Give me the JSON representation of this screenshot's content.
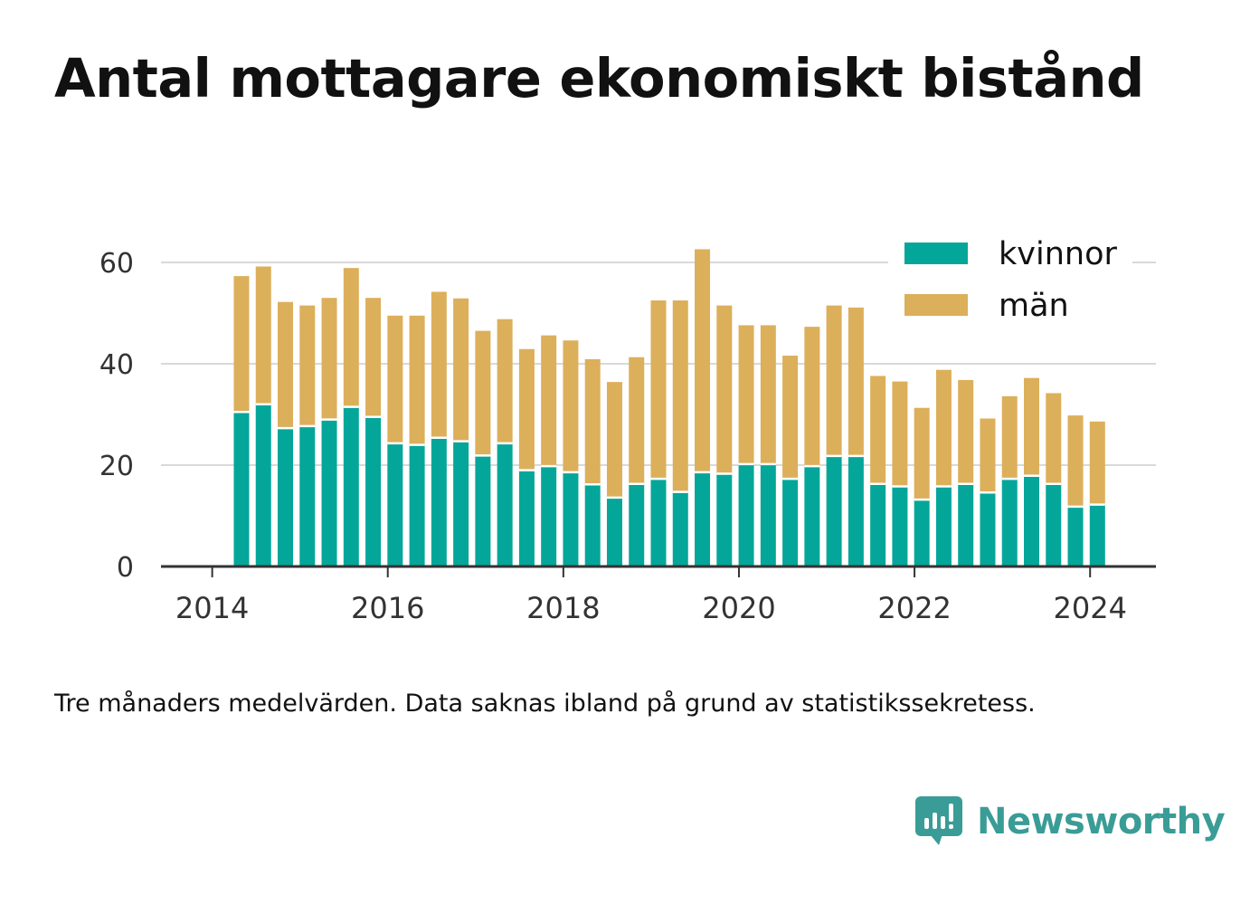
{
  "title": "Antal mottagare ekonomiskt bistånd",
  "note": "Tre månaders medelvärden. Data saknas ibland på grund av statistikssekretess.",
  "brand": {
    "name": "Newsworthy",
    "icon": "newsworthy-logo-icon"
  },
  "colors": {
    "kvinnor": "#05a69a",
    "man": "#dcaf5b",
    "grid": "#d9d9d9",
    "axis": "#333333",
    "brand": "#3a9c96"
  },
  "chart_data": {
    "type": "bar",
    "stacked": true,
    "x": [
      "2014-05",
      "2014-08",
      "2014-11",
      "2015-02",
      "2015-05",
      "2015-08",
      "2015-11",
      "2016-02",
      "2016-05",
      "2016-08",
      "2016-11",
      "2017-02",
      "2017-05",
      "2017-08",
      "2017-11",
      "2018-02",
      "2018-05",
      "2018-08",
      "2018-11",
      "2019-02",
      "2019-05",
      "2019-08",
      "2019-11",
      "2020-02",
      "2020-05",
      "2020-08",
      "2020-11",
      "2021-02",
      "2021-05",
      "2021-08",
      "2021-11",
      "2022-02",
      "2022-05",
      "2022-08",
      "2022-11",
      "2023-02",
      "2023-05",
      "2023-08",
      "2023-11",
      "2024-02"
    ],
    "series": [
      {
        "name": "kvinnor",
        "values": [
          30.5,
          32,
          27.3,
          27.7,
          29,
          31.5,
          29.5,
          24.3,
          24,
          25.4,
          24.7,
          21.9,
          24.3,
          19,
          19.8,
          18.6,
          16.2,
          13.6,
          16.3,
          17.3,
          14.7,
          18.6,
          18.3,
          20.2,
          20.2,
          17.3,
          19.8,
          21.8,
          21.8,
          16.3,
          15.8,
          13.2,
          15.8,
          16.3,
          14.6,
          17.3,
          17.9,
          16.3,
          11.8,
          12.2
        ]
      },
      {
        "name": "män",
        "values": [
          26.8,
          27.2,
          24.9,
          23.8,
          24,
          27.4,
          23.5,
          25.2,
          25.5,
          28.8,
          28.2,
          24.6,
          24.5,
          23.9,
          25.8,
          26,
          24.7,
          22.8,
          25,
          35.2,
          37.8,
          44,
          33.2,
          27.4,
          27.4,
          24.3,
          27.5,
          29.7,
          29.3,
          21.3,
          20.7,
          18.1,
          23,
          20.5,
          14.6,
          16.3,
          19.3,
          17.9,
          18,
          16.4
        ]
      }
    ],
    "x_ticks": [
      "2014",
      "2016",
      "2018",
      "2020",
      "2022",
      "2024"
    ],
    "y_ticks": [
      0,
      20,
      40,
      60
    ],
    "ylim": [
      0,
      70
    ],
    "xlim": [
      "2013-06",
      "2024-10"
    ],
    "legend": {
      "position": "top-right",
      "entries": [
        "kvinnor",
        "män"
      ]
    },
    "grid": true,
    "title": "",
    "xlabel": "",
    "ylabel": ""
  }
}
